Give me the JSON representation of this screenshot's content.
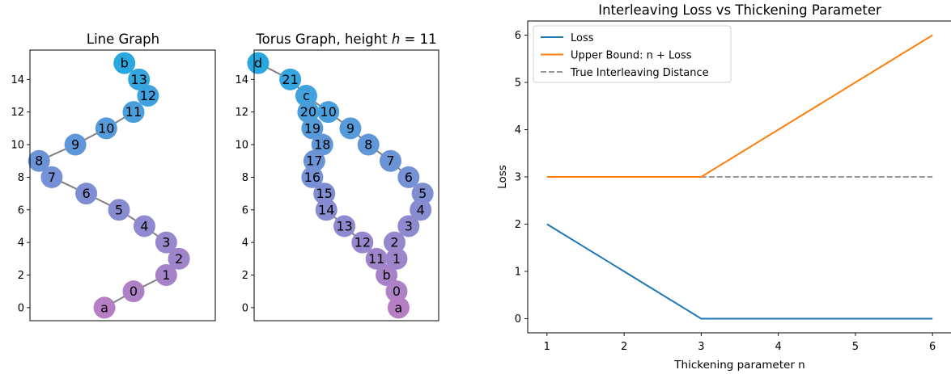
{
  "chart_data": [
    {
      "type": "network",
      "title": "Line Graph",
      "ylim": [
        -0.8,
        15.8
      ],
      "xlim": [
        -0.25,
        4.85
      ],
      "yticks": [
        0,
        2,
        4,
        6,
        8,
        10,
        12,
        14
      ],
      "node_color_top": "#29a8e0",
      "node_color_mid": "#7b8fd4",
      "node_color_bottom": "#b67fc4",
      "edge_color": "#808080",
      "nodes": [
        {
          "id": "a",
          "x": 1.8,
          "y": 0
        },
        {
          "id": "0",
          "x": 2.6,
          "y": 1
        },
        {
          "id": "1",
          "x": 3.5,
          "y": 2
        },
        {
          "id": "2",
          "x": 3.85,
          "y": 3
        },
        {
          "id": "3",
          "x": 3.5,
          "y": 4
        },
        {
          "id": "4",
          "x": 2.9,
          "y": 5
        },
        {
          "id": "5",
          "x": 2.2,
          "y": 6
        },
        {
          "id": "6",
          "x": 1.3,
          "y": 7
        },
        {
          "id": "7",
          "x": 0.35,
          "y": 8
        },
        {
          "id": "8",
          "x": 0.0,
          "y": 9
        },
        {
          "id": "9",
          "x": 1.0,
          "y": 10
        },
        {
          "id": "10",
          "x": 1.85,
          "y": 11
        },
        {
          "id": "11",
          "x": 2.6,
          "y": 12
        },
        {
          "id": "12",
          "x": 3.0,
          "y": 13
        },
        {
          "id": "13",
          "x": 2.75,
          "y": 14
        },
        {
          "id": "b",
          "x": 2.35,
          "y": 15
        }
      ],
      "edges": [
        [
          "a",
          "0"
        ],
        [
          "0",
          "1"
        ],
        [
          "1",
          "2"
        ],
        [
          "3",
          "4"
        ],
        [
          "4",
          "5"
        ],
        [
          "5",
          "6"
        ],
        [
          "6",
          "7"
        ],
        [
          "7",
          "8"
        ],
        [
          "8",
          "9"
        ],
        [
          "9",
          "10"
        ],
        [
          "10",
          "11"
        ],
        [
          "12",
          "13"
        ],
        [
          "13",
          "b"
        ]
      ]
    },
    {
      "type": "network",
      "title": "Torus Graph, height $h = 11$",
      "title_text": "Torus Graph, height ",
      "title_italic": "h",
      "title_suffix": " = 11",
      "ylim": [
        -0.8,
        15.8
      ],
      "xlim": [
        -0.1,
        4.5
      ],
      "yticks": [
        0,
        2,
        4,
        6,
        8,
        10,
        12,
        14
      ],
      "nodes": [
        {
          "id": "d",
          "x": 0.0,
          "y": 15
        },
        {
          "id": "21",
          "x": 0.8,
          "y": 14
        },
        {
          "id": "c",
          "x": 1.2,
          "y": 13
        },
        {
          "id": "20",
          "x": 1.25,
          "y": 12
        },
        {
          "id": "10",
          "x": 1.75,
          "y": 12
        },
        {
          "id": "19",
          "x": 1.35,
          "y": 11
        },
        {
          "id": "9",
          "x": 2.3,
          "y": 11
        },
        {
          "id": "18",
          "x": 1.6,
          "y": 10
        },
        {
          "id": "8",
          "x": 2.75,
          "y": 10
        },
        {
          "id": "17",
          "x": 1.4,
          "y": 9
        },
        {
          "id": "7",
          "x": 3.3,
          "y": 9
        },
        {
          "id": "16",
          "x": 1.35,
          "y": 8
        },
        {
          "id": "6",
          "x": 3.75,
          "y": 8
        },
        {
          "id": "15",
          "x": 1.65,
          "y": 7
        },
        {
          "id": "5",
          "x": 4.1,
          "y": 7
        },
        {
          "id": "14",
          "x": 1.7,
          "y": 6
        },
        {
          "id": "4",
          "x": 4.05,
          "y": 6
        },
        {
          "id": "13",
          "x": 2.15,
          "y": 5
        },
        {
          "id": "3",
          "x": 3.75,
          "y": 5
        },
        {
          "id": "12",
          "x": 2.6,
          "y": 4
        },
        {
          "id": "2",
          "x": 3.4,
          "y": 4
        },
        {
          "id": "11",
          "x": 2.95,
          "y": 3
        },
        {
          "id": "1",
          "x": 3.45,
          "y": 3
        },
        {
          "id": "b",
          "x": 3.2,
          "y": 2
        },
        {
          "id": "0",
          "x": 3.45,
          "y": 1
        },
        {
          "id": "a",
          "x": 3.5,
          "y": 0
        }
      ],
      "edges": [
        [
          "d",
          "21"
        ],
        [
          "21",
          "c"
        ],
        [
          "c",
          "20"
        ],
        [
          "c",
          "10"
        ],
        [
          "20",
          "19"
        ],
        [
          "19",
          "18"
        ],
        [
          "18",
          "17"
        ],
        [
          "17",
          "16"
        ],
        [
          "16",
          "15"
        ],
        [
          "15",
          "14"
        ],
        [
          "14",
          "13"
        ],
        [
          "13",
          "12"
        ],
        [
          "12",
          "11"
        ],
        [
          "11",
          "b"
        ],
        [
          "10",
          "9"
        ],
        [
          "9",
          "8"
        ],
        [
          "8",
          "7"
        ],
        [
          "7",
          "6"
        ],
        [
          "6",
          "5"
        ],
        [
          "5",
          "4"
        ],
        [
          "4",
          "3"
        ],
        [
          "3",
          "2"
        ],
        [
          "2",
          "1"
        ],
        [
          "1",
          "b"
        ],
        [
          "b",
          "0"
        ],
        [
          "0",
          "a"
        ]
      ]
    },
    {
      "type": "line",
      "title": "Interleaving Loss vs Thickening Parameter",
      "xlabel": "Thickening parameter n",
      "ylabel": "Loss",
      "x": [
        1,
        2,
        3,
        4,
        5,
        6
      ],
      "xlim": [
        0.75,
        6.25
      ],
      "ylim": [
        -0.3,
        6.3
      ],
      "xticks": [
        1,
        2,
        3,
        4,
        5,
        6
      ],
      "yticks": [
        0,
        1,
        2,
        3,
        4,
        5,
        6
      ],
      "legend_position": "top-left",
      "series": [
        {
          "name": "Loss",
          "values": [
            2,
            1,
            0,
            0,
            0,
            0
          ],
          "color": "#1f77b4",
          "dash": "solid"
        },
        {
          "name": "Upper Bound: n + Loss",
          "values": [
            3,
            3,
            3,
            4,
            5,
            6
          ],
          "color": "#ff7f0e",
          "dash": "solid"
        },
        {
          "name": "True Interleaving Distance",
          "values": [
            3,
            3,
            3,
            3,
            3,
            3
          ],
          "color": "#999999",
          "dash": "dashed"
        }
      ]
    }
  ]
}
